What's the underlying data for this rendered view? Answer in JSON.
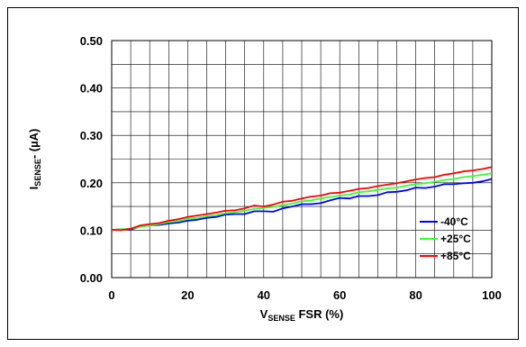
{
  "chart_data": {
    "type": "line",
    "x": [
      0,
      2.5,
      5,
      7.5,
      10,
      12.5,
      15,
      17.5,
      20,
      22.5,
      25,
      27.5,
      30,
      32.5,
      35,
      37.5,
      40,
      42.5,
      45,
      47.5,
      50,
      52.5,
      55,
      57.5,
      60,
      62.5,
      65,
      67.5,
      70,
      72.5,
      75,
      77.5,
      80,
      82.5,
      85,
      87.5,
      90,
      92.5,
      95,
      97.5,
      100
    ],
    "series": [
      {
        "name": "-40°C",
        "color": "#0000ff",
        "values": [
          0.1,
          0.102,
          0.101,
          0.108,
          0.11,
          0.111,
          0.114,
          0.116,
          0.12,
          0.122,
          0.126,
          0.128,
          0.133,
          0.134,
          0.134,
          0.14,
          0.14,
          0.139,
          0.146,
          0.15,
          0.155,
          0.155,
          0.157,
          0.163,
          0.168,
          0.167,
          0.172,
          0.172,
          0.174,
          0.18,
          0.181,
          0.184,
          0.19,
          0.189,
          0.192,
          0.197,
          0.197,
          0.199,
          0.2,
          0.203,
          0.208
        ]
      },
      {
        "name": "+25°C",
        "color": "#33ff33",
        "values": [
          0.1,
          0.102,
          0.103,
          0.107,
          0.11,
          0.113,
          0.117,
          0.119,
          0.124,
          0.126,
          0.13,
          0.132,
          0.136,
          0.138,
          0.141,
          0.145,
          0.147,
          0.149,
          0.153,
          0.156,
          0.161,
          0.163,
          0.167,
          0.17,
          0.173,
          0.175,
          0.18,
          0.182,
          0.185,
          0.188,
          0.19,
          0.194,
          0.197,
          0.199,
          0.202,
          0.206,
          0.208,
          0.212,
          0.214,
          0.217,
          0.22
        ]
      },
      {
        "name": "+85°C",
        "color": "#ff0000",
        "values": [
          0.101,
          0.1,
          0.103,
          0.11,
          0.113,
          0.115,
          0.12,
          0.123,
          0.128,
          0.131,
          0.134,
          0.137,
          0.141,
          0.142,
          0.146,
          0.152,
          0.15,
          0.154,
          0.16,
          0.162,
          0.167,
          0.171,
          0.173,
          0.178,
          0.179,
          0.183,
          0.187,
          0.189,
          0.193,
          0.196,
          0.199,
          0.203,
          0.207,
          0.21,
          0.212,
          0.217,
          0.22,
          0.224,
          0.226,
          0.229,
          0.233
        ]
      }
    ],
    "xlim": [
      0,
      100
    ],
    "ylim": [
      0,
      0.5
    ],
    "xticks": [
      "0",
      "20",
      "40",
      "60",
      "80",
      "100"
    ],
    "yticks": [
      "0.00",
      "0.10",
      "0.20",
      "0.30",
      "0.40",
      "0.50"
    ],
    "ylabel": {
      "main": "I",
      "sub": "SENSE",
      "tail": "- (µA)"
    },
    "xlabel": {
      "main": "V",
      "sub": "SENSE",
      "tail": " FSR (%)"
    },
    "grid": true,
    "legend_position": "bottom-right"
  }
}
